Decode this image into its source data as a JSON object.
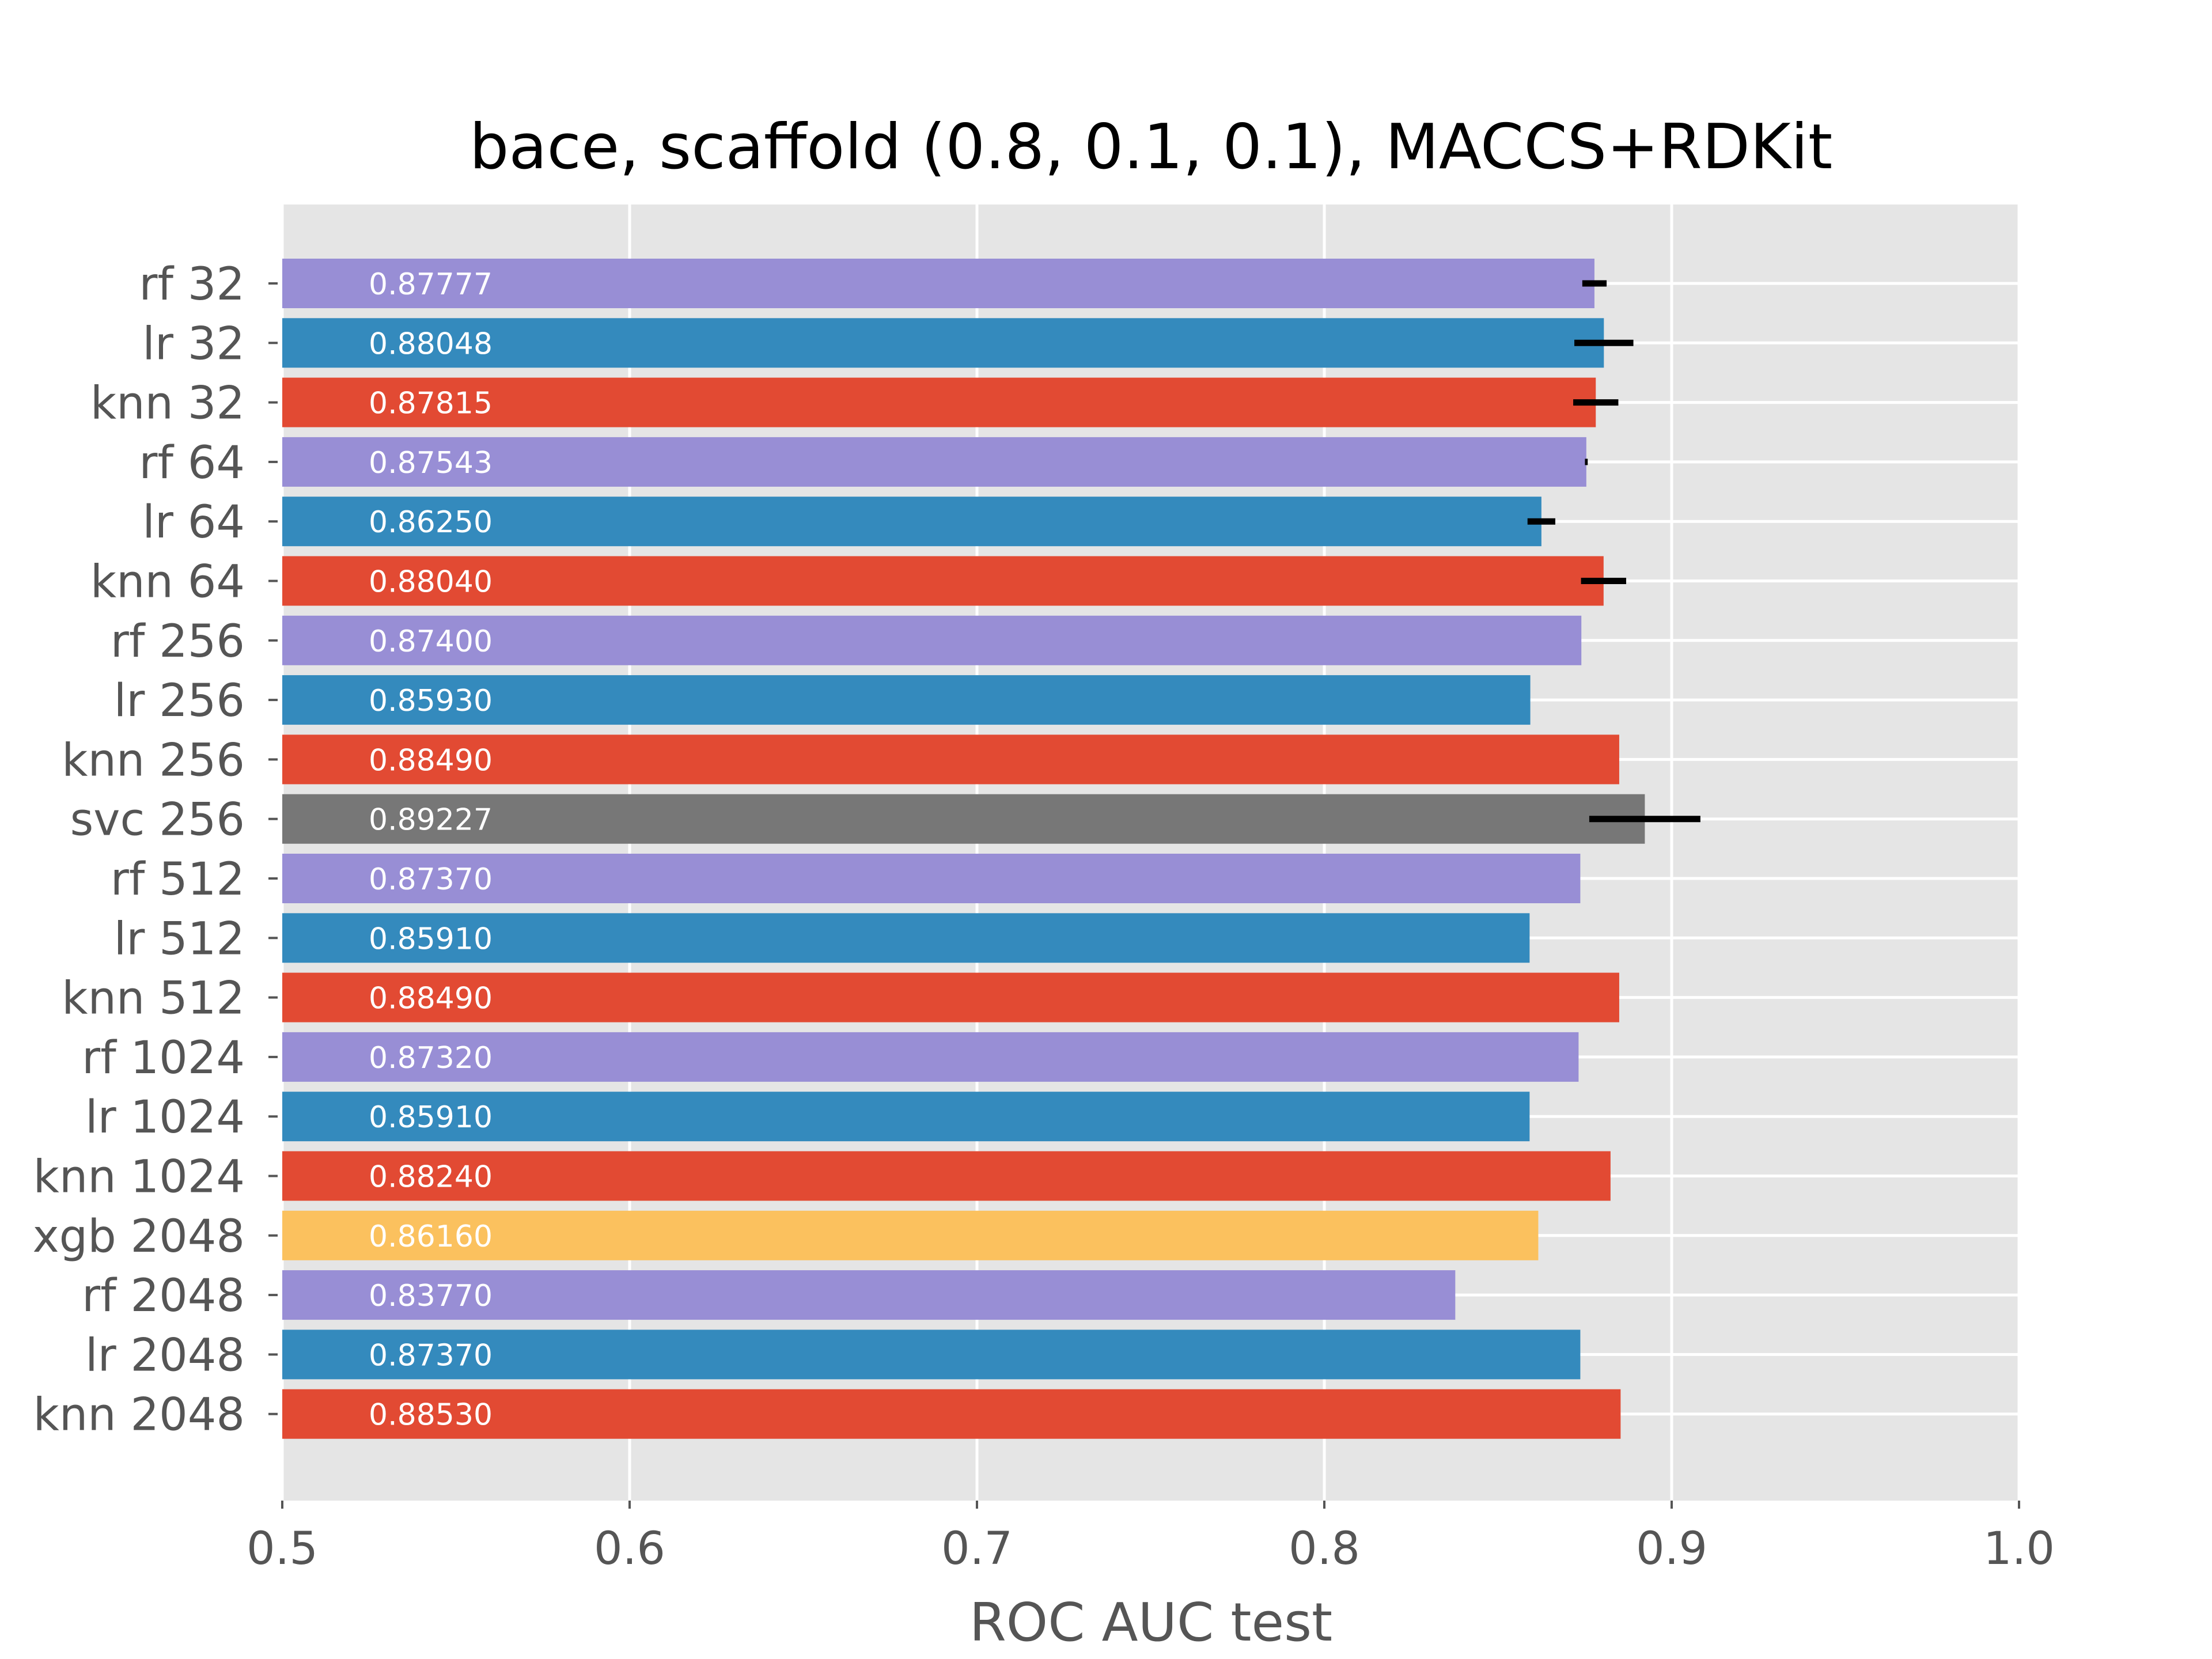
{
  "chart_data": {
    "type": "bar",
    "orientation": "horizontal",
    "title": "bace, scaffold (0.8, 0.1, 0.1), MACCS+RDKit",
    "xlabel": "ROC AUC test",
    "ylabel": "",
    "xlim": [
      0.5,
      1.0
    ],
    "xticks": [
      "0.5",
      "0.6",
      "0.7",
      "0.8",
      "0.9",
      "1.0"
    ],
    "grid": true,
    "colors": {
      "rf": "#988ED5",
      "lr": "#348ABD",
      "knn": "#E24A33",
      "svc": "#777777",
      "xgb": "#FBC15E",
      "plot_background": "#E5E5E5",
      "grid": "#FFFFFF",
      "error_bar": "#000000"
    },
    "bars": [
      {
        "label": "rf 32",
        "model": "rf",
        "value": 0.87777,
        "value_label": "0.87777",
        "error": 0.0035
      },
      {
        "label": "lr 32",
        "model": "lr",
        "value": 0.88048,
        "value_label": "0.88048",
        "error": 0.0085
      },
      {
        "label": "knn 32",
        "model": "knn",
        "value": 0.87815,
        "value_label": "0.87815",
        "error": 0.0065
      },
      {
        "label": "rf 64",
        "model": "rf",
        "value": 0.87543,
        "value_label": "0.87543",
        "error": 0.0004
      },
      {
        "label": "lr 64",
        "model": "lr",
        "value": 0.8625,
        "value_label": "0.86250",
        "error": 0.004
      },
      {
        "label": "knn 64",
        "model": "knn",
        "value": 0.8804,
        "value_label": "0.88040",
        "error": 0.0065
      },
      {
        "label": "rf 256",
        "model": "rf",
        "value": 0.874,
        "value_label": "0.87400",
        "error": 0
      },
      {
        "label": "lr 256",
        "model": "lr",
        "value": 0.8593,
        "value_label": "0.85930",
        "error": 0
      },
      {
        "label": "knn 256",
        "model": "knn",
        "value": 0.8849,
        "value_label": "0.88490",
        "error": 0
      },
      {
        "label": "svc 256",
        "model": "svc",
        "value": 0.89227,
        "value_label": "0.89227",
        "error": 0.016
      },
      {
        "label": "rf 512",
        "model": "rf",
        "value": 0.8737,
        "value_label": "0.87370",
        "error": 0
      },
      {
        "label": "lr 512",
        "model": "lr",
        "value": 0.8591,
        "value_label": "0.85910",
        "error": 0
      },
      {
        "label": "knn 512",
        "model": "knn",
        "value": 0.8849,
        "value_label": "0.88490",
        "error": 0
      },
      {
        "label": "rf 1024",
        "model": "rf",
        "value": 0.8732,
        "value_label": "0.87320",
        "error": 0
      },
      {
        "label": "lr 1024",
        "model": "lr",
        "value": 0.8591,
        "value_label": "0.85910",
        "error": 0
      },
      {
        "label": "knn 1024",
        "model": "knn",
        "value": 0.8824,
        "value_label": "0.88240",
        "error": 0
      },
      {
        "label": "xgb 2048",
        "model": "xgb",
        "value": 0.8616,
        "value_label": "0.86160",
        "error": 0
      },
      {
        "label": "rf 2048",
        "model": "rf",
        "value": 0.8377,
        "value_label": "0.83770",
        "error": 0
      },
      {
        "label": "lr 2048",
        "model": "lr",
        "value": 0.8737,
        "value_label": "0.87370",
        "error": 0
      },
      {
        "label": "knn 2048",
        "model": "knn",
        "value": 0.8853,
        "value_label": "0.88530",
        "error": 0
      }
    ]
  }
}
